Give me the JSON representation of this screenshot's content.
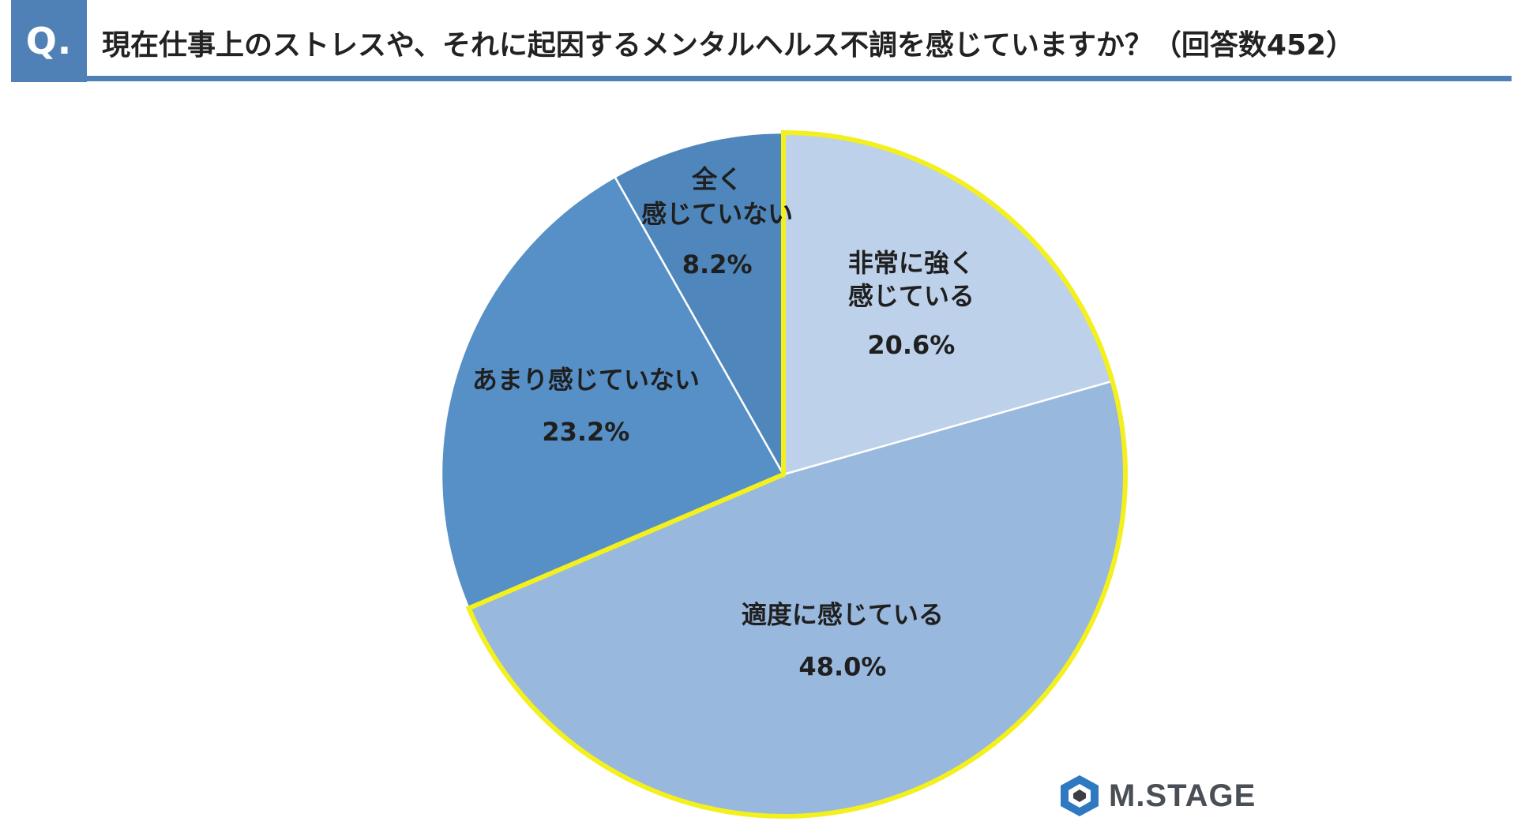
{
  "header": {
    "badge": "Q.",
    "title": "現在仕事上のストレスや、それに起因するメンタルヘルス不調を感じていますか？（回答数452）"
  },
  "chart_data": {
    "type": "pie",
    "start_angle_deg": 0,
    "direction": "clockwise",
    "slices": [
      {
        "label_lines": [
          "非常に強く",
          "感じている"
        ],
        "value": 20.6,
        "value_label": "20.6%",
        "color": "#bdd1ea",
        "highlight": true
      },
      {
        "label_lines": [
          "適度に感じている"
        ],
        "value": 48.0,
        "value_label": "48.0%",
        "color": "#98b8de",
        "highlight": true
      },
      {
        "label_lines": [
          "あまり感じていない"
        ],
        "value": 23.2,
        "value_label": "23.2%",
        "color": "#5790c6",
        "highlight": false
      },
      {
        "label_lines": [
          "全く",
          "感じていない"
        ],
        "value": 8.2,
        "value_label": "8.2%",
        "color": "#4f87bc",
        "highlight": false
      }
    ],
    "highlight_color": "#f3f01e",
    "separator_color": "#ffffff"
  },
  "logo": {
    "text": "M.STAGE",
    "icon": "hexagon-logo-icon"
  }
}
